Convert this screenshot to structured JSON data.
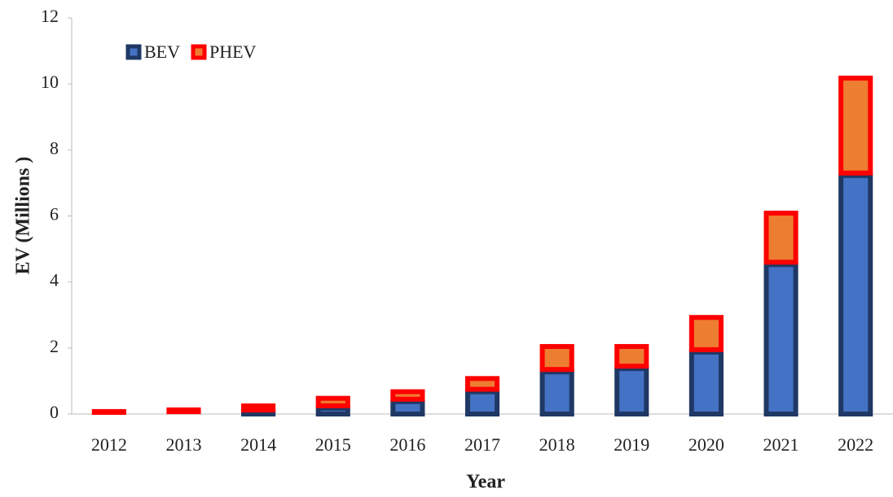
{
  "chart_data": {
    "type": "stacked_bar",
    "x_label": "Year",
    "y_label": "EV (Millions )",
    "categories": [
      "2012",
      "2013",
      "2014",
      "2015",
      "2016",
      "2017",
      "2018",
      "2019",
      "2020",
      "2021",
      "2022"
    ],
    "series": [
      {
        "name": "BEV",
        "color": "#4472c4",
        "edge": "#1f3864",
        "values": [
          0.05,
          0.07,
          0.12,
          0.25,
          0.45,
          0.75,
          1.35,
          1.45,
          1.95,
          4.6,
          7.3
        ]
      },
      {
        "name": "PHEV",
        "color": "#ed7d31",
        "edge": "#ff0000",
        "values": [
          0.1,
          0.13,
          0.2,
          0.3,
          0.3,
          0.4,
          0.77,
          0.67,
          1.05,
          1.56,
          2.95
        ]
      }
    ],
    "ylim": [
      0,
      12
    ],
    "yticks": [
      0,
      2,
      4,
      6,
      8,
      10,
      12
    ],
    "legend": "upper left"
  }
}
